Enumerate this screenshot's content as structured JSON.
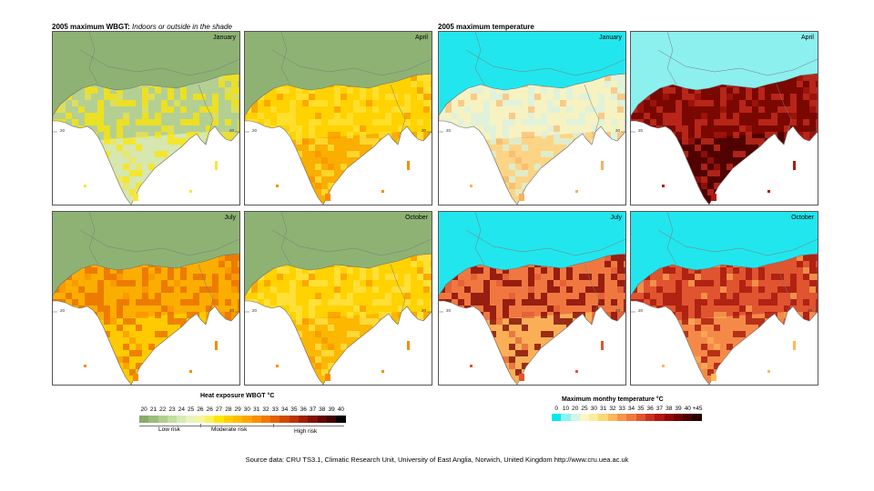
{
  "wbgt": {
    "title_bold": "2005 maximum WBGT:",
    "title_italic": "Indoors or outside in the shade",
    "panels": [
      {
        "month": "January",
        "lat_label_left": "20",
        "lat_label_right": "20"
      },
      {
        "month": "April",
        "lat_label_left": "20",
        "lat_label_right": "20"
      },
      {
        "month": "July",
        "lat_label_left": "20",
        "lat_label_right": "20"
      },
      {
        "month": "October",
        "lat_label_left": "20",
        "lat_label_right": "20"
      }
    ],
    "legend": {
      "title": "Heat exposure WBGT °C",
      "ticks": [
        "20",
        "21",
        "22",
        "23",
        "24",
        "25",
        "26",
        "26",
        "27",
        "28",
        "29",
        "30",
        "31",
        "32",
        "33",
        "34",
        "35",
        "36",
        "37",
        "38",
        "39",
        "40"
      ],
      "colors": [
        "#86ac6c",
        "#9bbd7a",
        "#b0ce8e",
        "#c4dda2",
        "#d8eab6",
        "#e8f3c0",
        "#f3f6a0",
        "#fbf15e",
        "#ffe600",
        "#ffd000",
        "#ffbc00",
        "#ffa600",
        "#fb8f00",
        "#f27800",
        "#e46100",
        "#d24a00",
        "#bc3300",
        "#a01f00",
        "#821000",
        "#610500",
        "#3c0000",
        "#000000"
      ],
      "risk_low": "Low risk",
      "risk_moderate": "Moderate risk",
      "risk_high": "High risk"
    }
  },
  "temp": {
    "title_bold": "2005 maximum temperature",
    "panels": [
      {
        "month": "January",
        "lat_label_left": "20",
        "lat_label_right": "20"
      },
      {
        "month": "April",
        "lat_label_left": "20",
        "lat_label_right": "20"
      },
      {
        "month": "July",
        "lat_label_left": "20",
        "lat_label_right": "20"
      },
      {
        "month": "October",
        "lat_label_left": "20",
        "lat_label_right": "20"
      }
    ],
    "legend": {
      "title": "Maximum monthy temperature °C",
      "ticks": [
        "0",
        "10",
        "20",
        "25",
        "30",
        "31",
        "32",
        "33",
        "34",
        "35",
        "36",
        "37",
        "38",
        "39",
        "40",
        "+45"
      ],
      "colors": [
        "#00e8ef",
        "#8cf2f2",
        "#d2f6e4",
        "#fcf6c4",
        "#fcec9c",
        "#fcd874",
        "#fcb85c",
        "#f8944c",
        "#f07840",
        "#e05430",
        "#cc3020",
        "#b01810",
        "#900808",
        "#700000",
        "#4c0000",
        "#280000"
      ]
    }
  },
  "source": "Source data: CRU TS3.1, Climatic Research Unit, University of East Anglia, Norwich, United Kingdom http://www.cru.uea.ac.uk"
}
